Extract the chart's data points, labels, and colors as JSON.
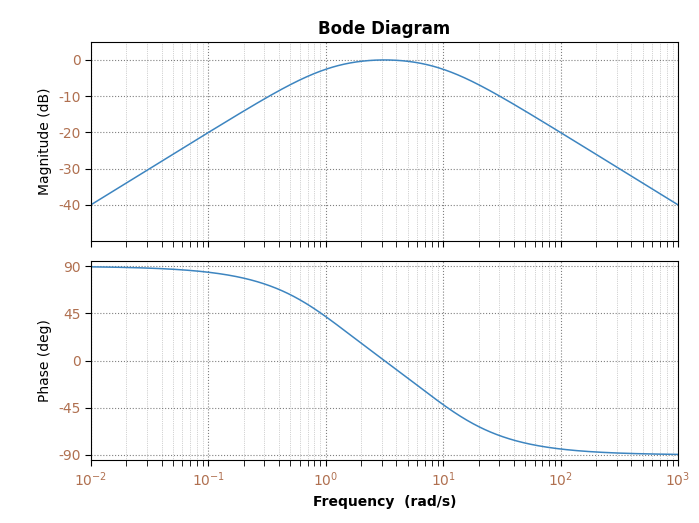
{
  "title": "Bode Diagram",
  "xlabel": "Frequency  (rad/s)",
  "ylabel_mag": "Magnitude (dB)",
  "ylabel_phase": "Phase (deg)",
  "freq_range": [
    0.01,
    1000
  ],
  "mag_ylim": [
    -50,
    5
  ],
  "mag_yticks": [
    0,
    -10,
    -20,
    -30,
    -40
  ],
  "phase_ylim": [
    -95,
    95
  ],
  "phase_yticks": [
    90,
    45,
    0,
    -45,
    -90
  ],
  "line_color": "#3d85c0",
  "background_color": "#ffffff",
  "tick_color": "#b07050",
  "title_fontsize": 12,
  "label_fontsize": 10,
  "tick_fontsize": 10,
  "num_tf": [
    10,
    0
  ],
  "den_tf": [
    1,
    10,
    10
  ],
  "num_points": 2000
}
